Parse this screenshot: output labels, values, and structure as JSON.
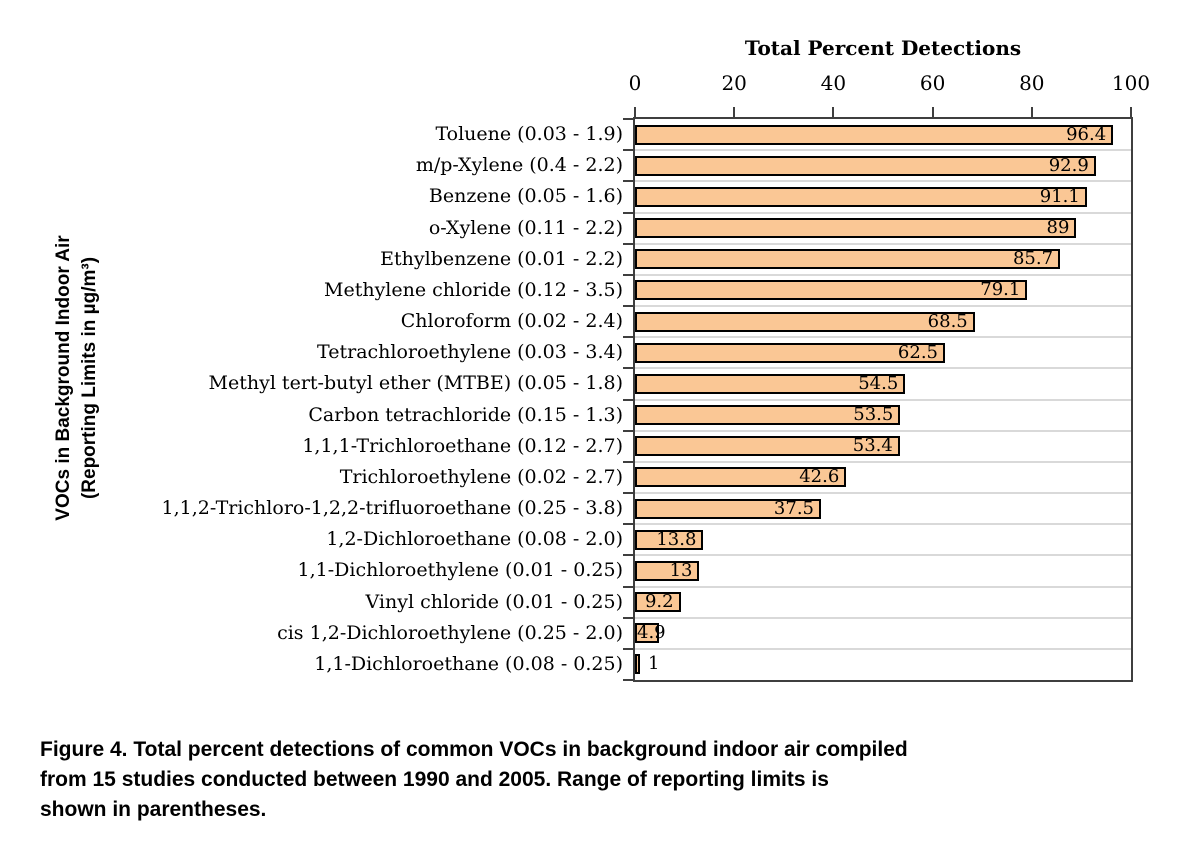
{
  "chart_data": {
    "type": "bar",
    "orientation": "horizontal",
    "title": "Total Percent Detections",
    "xlabel": "Total Percent Detections",
    "ylabel_lines": [
      "VOCs in Background Indoor Air",
      "(Reporting Limits in µg/m³)"
    ],
    "xlim": [
      0,
      100
    ],
    "xticks": [
      "0",
      "20",
      "40",
      "60",
      "80",
      "100"
    ],
    "xtick_values": [
      0,
      20,
      40,
      60,
      80,
      100
    ],
    "grid": "horizontal category separators",
    "legend_position": "none",
    "axis_label_position": "top",
    "categories": [
      "Toluene (0.03 - 1.9)",
      "m/p-Xylene (0.4 - 2.2)",
      "Benzene (0.05 - 1.6)",
      "o-Xylene (0.11 - 2.2)",
      "Ethylbenzene (0.01 - 2.2)",
      "Methylene chloride (0.12 - 3.5)",
      "Chloroform (0.02 - 2.4)",
      "Tetrachloroethylene (0.03 - 3.4)",
      "Methyl tert-butyl ether (MTBE) (0.05 - 1.8)",
      "Carbon tetrachloride (0.15 - 1.3)",
      "1,1,1-Trichloroethane (0.12 - 2.7)",
      "Trichloroethylene (0.02 - 2.7)",
      "1,1,2-Trichloro-1,2,2-trifluoroethane (0.25 - 3.8)",
      "1,2-Dichloroethane (0.08 - 2.0)",
      "1,1-Dichloroethylene (0.01 - 0.25)",
      "Vinyl chloride (0.01 - 0.25)",
      "cis 1,2-Dichloroethylene (0.25 - 2.0)",
      "1,1-Dichloroethane (0.08 - 0.25)"
    ],
    "values": [
      96.4,
      92.9,
      91.1,
      89,
      85.7,
      79.1,
      68.5,
      62.5,
      54.5,
      53.5,
      53.4,
      42.6,
      37.5,
      13.8,
      13,
      9.2,
      4.9,
      1
    ],
    "value_labels": [
      "96.4",
      "92.9",
      "91.1",
      "89",
      "85.7",
      "79.1",
      "68.5",
      "62.5",
      "54.5",
      "53.5",
      "53.4",
      "42.6",
      "37.5",
      "13.8",
      "13",
      "9.2",
      "4.9",
      "1"
    ],
    "colors": {
      "bar_fill": "#FAC795",
      "bar_border": "#000000",
      "plot_frame": "#3F3F3F",
      "gridline": "#D9D9D9",
      "text": "#000000",
      "background": "#FFFFFF"
    }
  },
  "caption": {
    "lines": [
      "Figure 4. Total percent detections of common VOCs in background indoor air compiled",
      "from 15 studies conducted between 1990 and 2005. Range of reporting limits is",
      "shown in parentheses."
    ]
  }
}
